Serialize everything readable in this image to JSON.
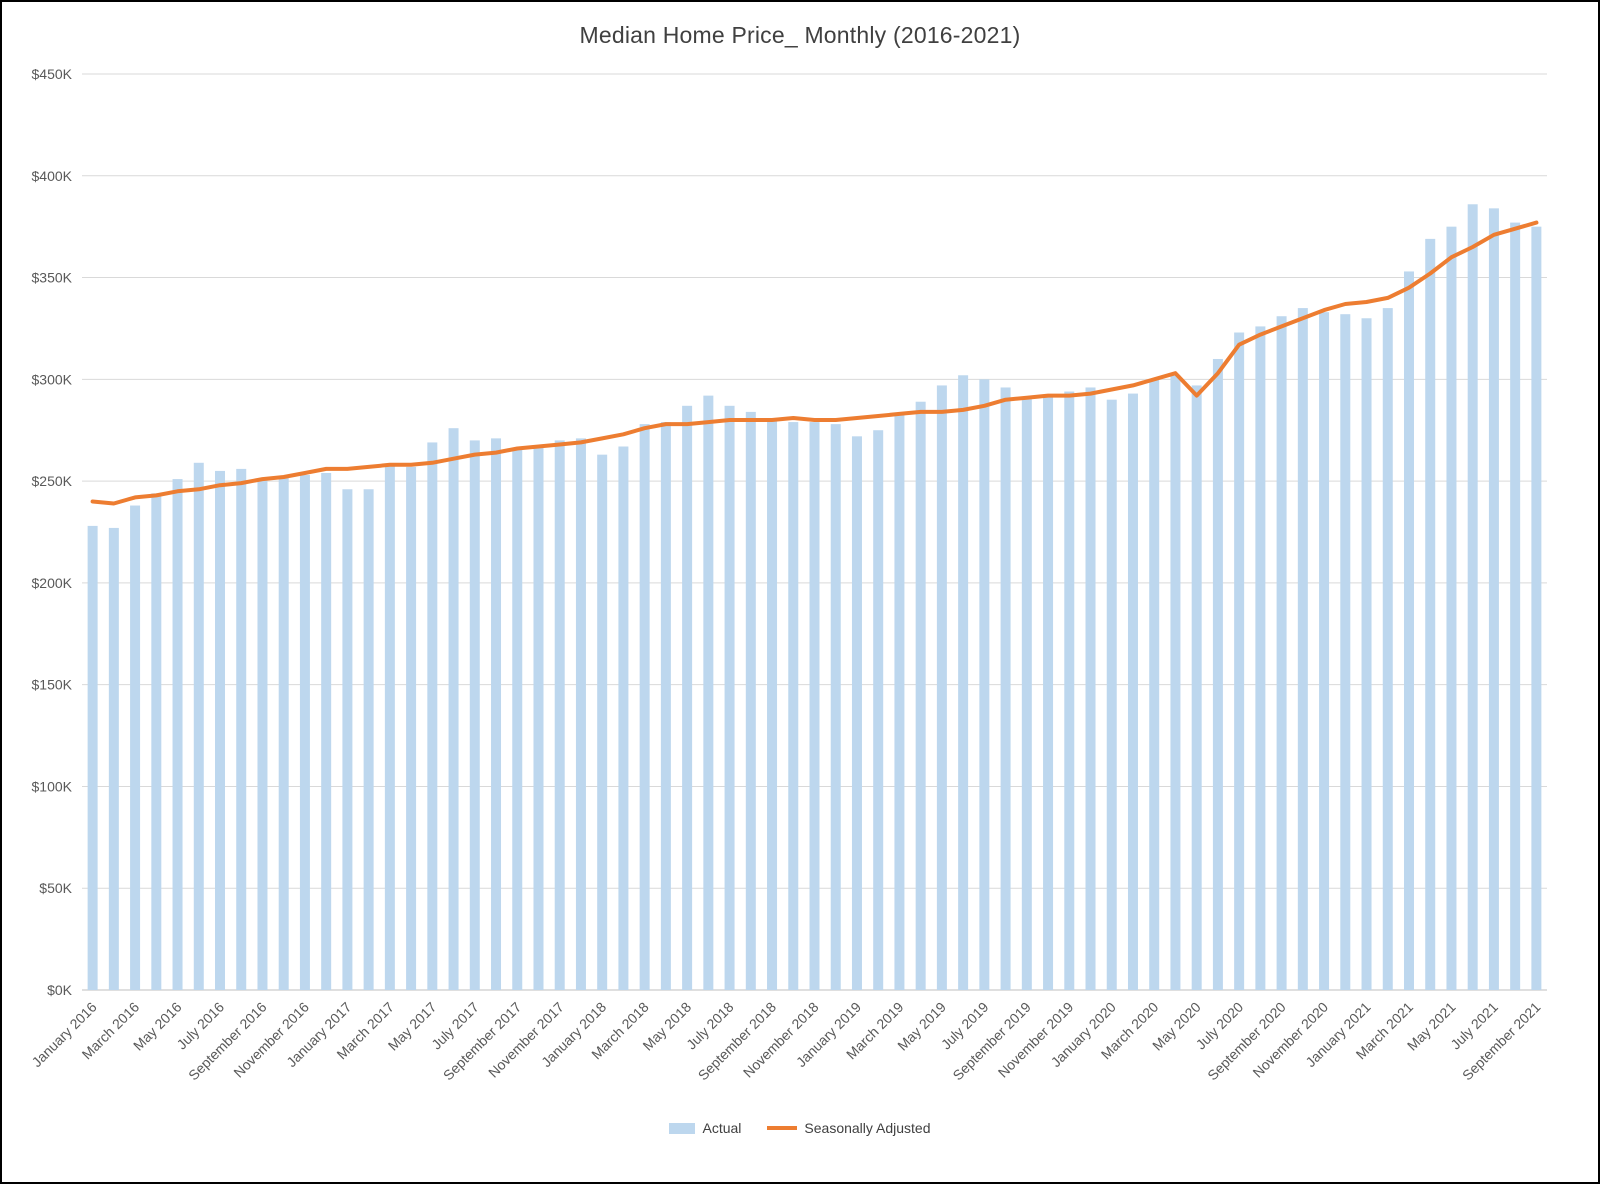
{
  "title": "Median Home Price_ Monthly (2016-2021)",
  "legend": {
    "actual_label": "Actual",
    "adjusted_label": "Seasonally Adjusted"
  },
  "colors": {
    "bar": "#BDD7EE",
    "line": "#ED7D31",
    "gridline": "#D9D9D9",
    "axis_line": "#BFBFBF",
    "axis_text": "#595959",
    "title_text": "#404040"
  },
  "chart_data": {
    "type": "bar",
    "title": "Median Home Price_ Monthly (2016-2021)",
    "xlabel": "",
    "ylabel": "",
    "ylim": [
      0,
      450
    ],
    "y_tick_step": 50,
    "y_ticks": [
      "$0K",
      "$50K",
      "$100K",
      "$150K",
      "$200K",
      "$250K",
      "$300K",
      "$350K",
      "$400K",
      "$450K"
    ],
    "x_tick_every": 2,
    "grid": true,
    "legend_position": "bottom",
    "categories": [
      "January 2016",
      "February 2016",
      "March 2016",
      "April 2016",
      "May 2016",
      "June 2016",
      "July 2016",
      "August 2016",
      "September 2016",
      "October 2016",
      "November 2016",
      "December 2016",
      "January 2017",
      "February 2017",
      "March 2017",
      "April 2017",
      "May 2017",
      "June 2017",
      "July 2017",
      "August 2017",
      "September 2017",
      "October 2017",
      "November 2017",
      "December 2017",
      "January 2018",
      "February 2018",
      "March 2018",
      "April 2018",
      "May 2018",
      "June 2018",
      "July 2018",
      "August 2018",
      "September 2018",
      "October 2018",
      "November 2018",
      "December 2018",
      "January 2019",
      "February 2019",
      "March 2019",
      "April 2019",
      "May 2019",
      "June 2019",
      "July 2019",
      "August 2019",
      "September 2019",
      "October 2019",
      "November 2019",
      "December 2019",
      "January 2020",
      "February 2020",
      "March 2020",
      "April 2020",
      "May 2020",
      "June 2020",
      "July 2020",
      "August 2020",
      "September 2020",
      "October 2020",
      "November 2020",
      "December 2020",
      "January 2021",
      "February 2021",
      "March 2021",
      "April 2021",
      "May 2021",
      "June 2021",
      "July 2021",
      "August 2021",
      "September 2021"
    ],
    "series": [
      {
        "name": "Actual",
        "render": "bar",
        "color": "#BDD7EE",
        "unit": "$K",
        "values": [
          228,
          227,
          238,
          244,
          251,
          259,
          255,
          256,
          251,
          252,
          253,
          254,
          246,
          246,
          258,
          257,
          269,
          276,
          270,
          271,
          266,
          267,
          270,
          271,
          263,
          267,
          278,
          279,
          287,
          292,
          287,
          284,
          280,
          279,
          279,
          278,
          272,
          275,
          283,
          289,
          297,
          302,
          300,
          296,
          291,
          292,
          294,
          296,
          290,
          293,
          300,
          302,
          297,
          310,
          323,
          326,
          331,
          335,
          333,
          332,
          330,
          335,
          353,
          369,
          375,
          386,
          384,
          377,
          375
        ]
      },
      {
        "name": "Seasonally Adjusted",
        "render": "line",
        "color": "#ED7D31",
        "unit": "$K",
        "values": [
          240,
          239,
          242,
          243,
          245,
          246,
          248,
          249,
          251,
          252,
          254,
          256,
          256,
          257,
          258,
          258,
          259,
          261,
          263,
          264,
          266,
          267,
          268,
          269,
          271,
          273,
          276,
          278,
          278,
          279,
          280,
          280,
          280,
          281,
          280,
          280,
          281,
          282,
          283,
          284,
          284,
          285,
          287,
          290,
          291,
          292,
          292,
          293,
          295,
          297,
          300,
          303,
          292,
          303,
          317,
          322,
          326,
          330,
          334,
          337,
          338,
          340,
          345,
          352,
          360,
          365,
          371,
          374,
          377
        ]
      }
    ]
  }
}
